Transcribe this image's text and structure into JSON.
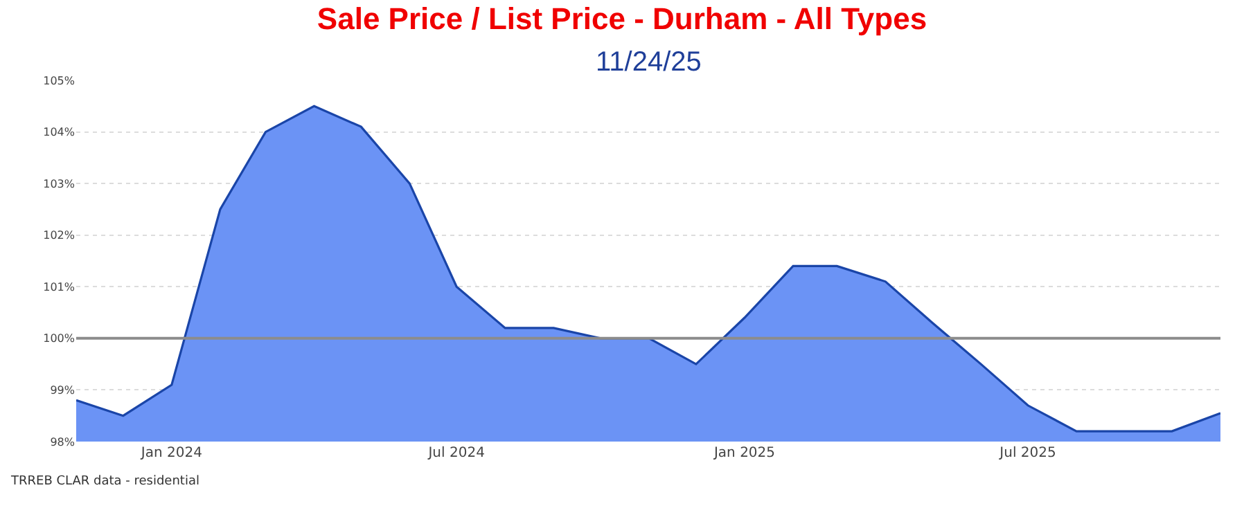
{
  "chart_data": {
    "type": "area",
    "title": "Sale Price / List Price - Durham - All Types",
    "subtitle": "11/24/25",
    "x": [
      "2023-11",
      "2023-12",
      "2024-01",
      "2024-02",
      "2024-03",
      "2024-04",
      "2024-05",
      "2024-06",
      "2024-07",
      "2024-08",
      "2024-09",
      "2024-10",
      "2024-11",
      "2024-12",
      "2025-01",
      "2025-02",
      "2025-03",
      "2025-04",
      "2025-05",
      "2025-06",
      "2025-07",
      "2025-08",
      "2025-09",
      "2025-10",
      "2025-11"
    ],
    "series": [
      {
        "color": "#6b93f5",
        "values": [
          98.8,
          98.5,
          99.1,
          102.5,
          104.0,
          104.5,
          104.1,
          103.0,
          101.0,
          100.2,
          100.2,
          100.0,
          100.0,
          99.5,
          100.4,
          101.4,
          101.4,
          101.1,
          100.3,
          99.5,
          98.7,
          98.2,
          98.2,
          98.2,
          98.55
        ]
      }
    ],
    "xlim": [
      "2023-11",
      "2025-11"
    ],
    "xticks": [
      {
        "value": "2024-01",
        "label": "Jan 2024"
      },
      {
        "value": "2024-07",
        "label": "Jul 2024"
      },
      {
        "value": "2025-01",
        "label": "Jan 2025"
      },
      {
        "value": "2025-07",
        "label": "Jul 2025"
      }
    ],
    "ylim": [
      98,
      105
    ],
    "yticks": [
      {
        "value": 98,
        "label": "98%"
      },
      {
        "value": 99,
        "label": "99%"
      },
      {
        "value": 100,
        "label": "100%"
      },
      {
        "value": 101,
        "label": "101%"
      },
      {
        "value": 102,
        "label": "102%"
      },
      {
        "value": 103,
        "label": "103%"
      },
      {
        "value": 104,
        "label": "104%"
      },
      {
        "value": 105,
        "label": "105%"
      }
    ],
    "ref_lines": [
      {
        "axis": "y",
        "value": 100,
        "color": "#8c8c8c"
      }
    ],
    "annotations": [
      "TRREB CLAR data - residential"
    ],
    "grid": "y",
    "marker": "none",
    "line_style": "solid"
  }
}
